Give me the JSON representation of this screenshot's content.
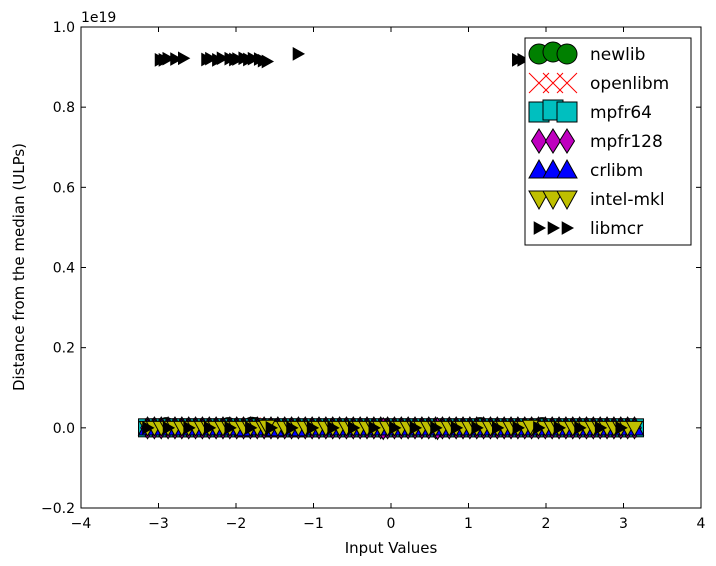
{
  "chart_data": {
    "type": "scatter",
    "title": "",
    "xlabel": "Input Values",
    "ylabel": "Distance from the median (ULPs)",
    "y_multiplier_label": "1e19",
    "xlim": [
      -4,
      4
    ],
    "ylim": [
      -0.2,
      1.0
    ],
    "y_scale_exponent": 19,
    "x_ticks": [
      -4,
      -3,
      -2,
      -1,
      0,
      1,
      2,
      3,
      4
    ],
    "x_tick_labels": [
      "−4",
      "−3",
      "−2",
      "−1",
      "0",
      "1",
      "2",
      "3",
      "4"
    ],
    "y_ticks": [
      -0.2,
      0.0,
      0.2,
      0.4,
      0.6,
      0.8,
      1.0
    ],
    "y_tick_labels": [
      "−0.2",
      "0.0",
      "0.2",
      "0.4",
      "0.6",
      "0.8",
      "1.0"
    ],
    "grid": false,
    "legend_position": "top-right",
    "x_range_points": [
      -3.14159,
      3.14159
    ],
    "series": [
      {
        "name": "newlib",
        "marker": "circle",
        "color": "#008000",
        "x_range": [
          -3.14159,
          3.14159
        ],
        "baseline_y": 0.0,
        "outliers": [
          [
            -2.9,
            0.003
          ],
          [
            -2.1,
            0.003
          ],
          [
            -1.8,
            0.004
          ],
          [
            -1.75,
            0.003
          ],
          [
            1.15,
            0.003
          ],
          [
            1.95,
            0.003
          ]
        ]
      },
      {
        "name": "openlibm",
        "marker": "x",
        "color": "#ff0000",
        "x_range": [
          -3.14159,
          3.14159
        ],
        "baseline_y": 0.0,
        "outliers": [
          [
            -1.8,
            0.003
          ]
        ]
      },
      {
        "name": "mpfr64",
        "marker": "square",
        "color": "#00bfbf",
        "x_range": [
          -3.14159,
          3.14159
        ],
        "baseline_y": 0.0,
        "outliers": []
      },
      {
        "name": "mpfr128",
        "marker": "diamond",
        "color": "#bf00bf",
        "x_range": [
          -3.14159,
          3.14159
        ],
        "baseline_y": 0.0,
        "outliers": [
          [
            -0.1,
            -0.002
          ],
          [
            0.6,
            -0.002
          ]
        ]
      },
      {
        "name": "crlibm",
        "marker": "triangle-up",
        "color": "#0000ff",
        "x_range": [
          -3.14159,
          3.14159
        ],
        "baseline_y": 0.0,
        "outliers": [
          [
            -1.9,
            -0.002
          ],
          [
            -1.5,
            -0.002
          ],
          [
            -1.2,
            -0.002
          ]
        ]
      },
      {
        "name": "intel-mkl",
        "marker": "triangle-down",
        "color": "#bfbf00",
        "x_range": [
          -3.14159,
          3.14159
        ],
        "baseline_y": 0.0,
        "outliers": [
          [
            -1.6,
            0.003
          ],
          [
            1.8,
            0.003
          ]
        ]
      },
      {
        "name": "libmcr",
        "marker": "triangle-right",
        "color": "#000000",
        "x_range": [
          -3.14159,
          3.14159
        ],
        "baseline_y": 0.0,
        "outliers": [
          [
            -2.98,
            0.918
          ],
          [
            -2.93,
            0.918
          ],
          [
            -2.88,
            0.921
          ],
          [
            -2.78,
            0.92
          ],
          [
            -2.68,
            0.922
          ],
          [
            -2.38,
            0.919
          ],
          [
            -2.33,
            0.921
          ],
          [
            -2.24,
            0.918
          ],
          [
            -2.18,
            0.922
          ],
          [
            -2.08,
            0.921
          ],
          [
            -2.02,
            0.919
          ],
          [
            -1.98,
            0.92
          ],
          [
            -1.9,
            0.922
          ],
          [
            -1.84,
            0.919
          ],
          [
            -1.78,
            0.921
          ],
          [
            -1.7,
            0.92
          ],
          [
            -1.65,
            0.916
          ],
          [
            -1.6,
            0.914
          ],
          [
            -1.2,
            0.933
          ],
          [
            1.63,
            0.918
          ],
          [
            1.7,
            0.918
          ]
        ]
      }
    ]
  }
}
